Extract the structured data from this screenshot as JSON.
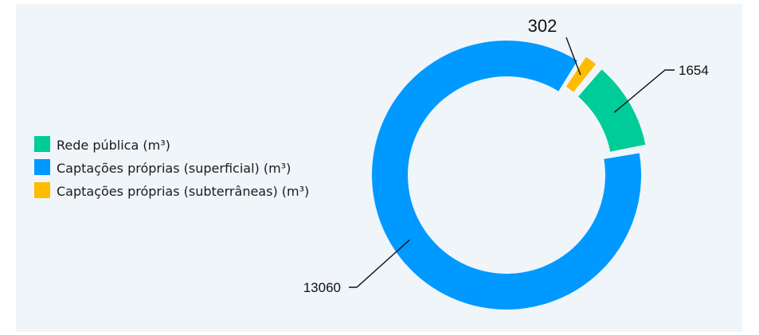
{
  "chart_data": {
    "type": "pie",
    "variant": "donut",
    "title": "",
    "background_color": "#f0f5fa",
    "legend_position": "left",
    "series": [
      {
        "name": "Rede pública (m³)",
        "value": 1654,
        "label": "1654",
        "color": "#00cc99"
      },
      {
        "name": "Captações próprias (superficial) (m³)",
        "value": 13060,
        "label": "13060",
        "color": "#0099ff"
      },
      {
        "name": "Captações próprias (subterrâneas) (m³)",
        "value": 302,
        "label": "302",
        "color": "#ffbb00"
      }
    ]
  }
}
